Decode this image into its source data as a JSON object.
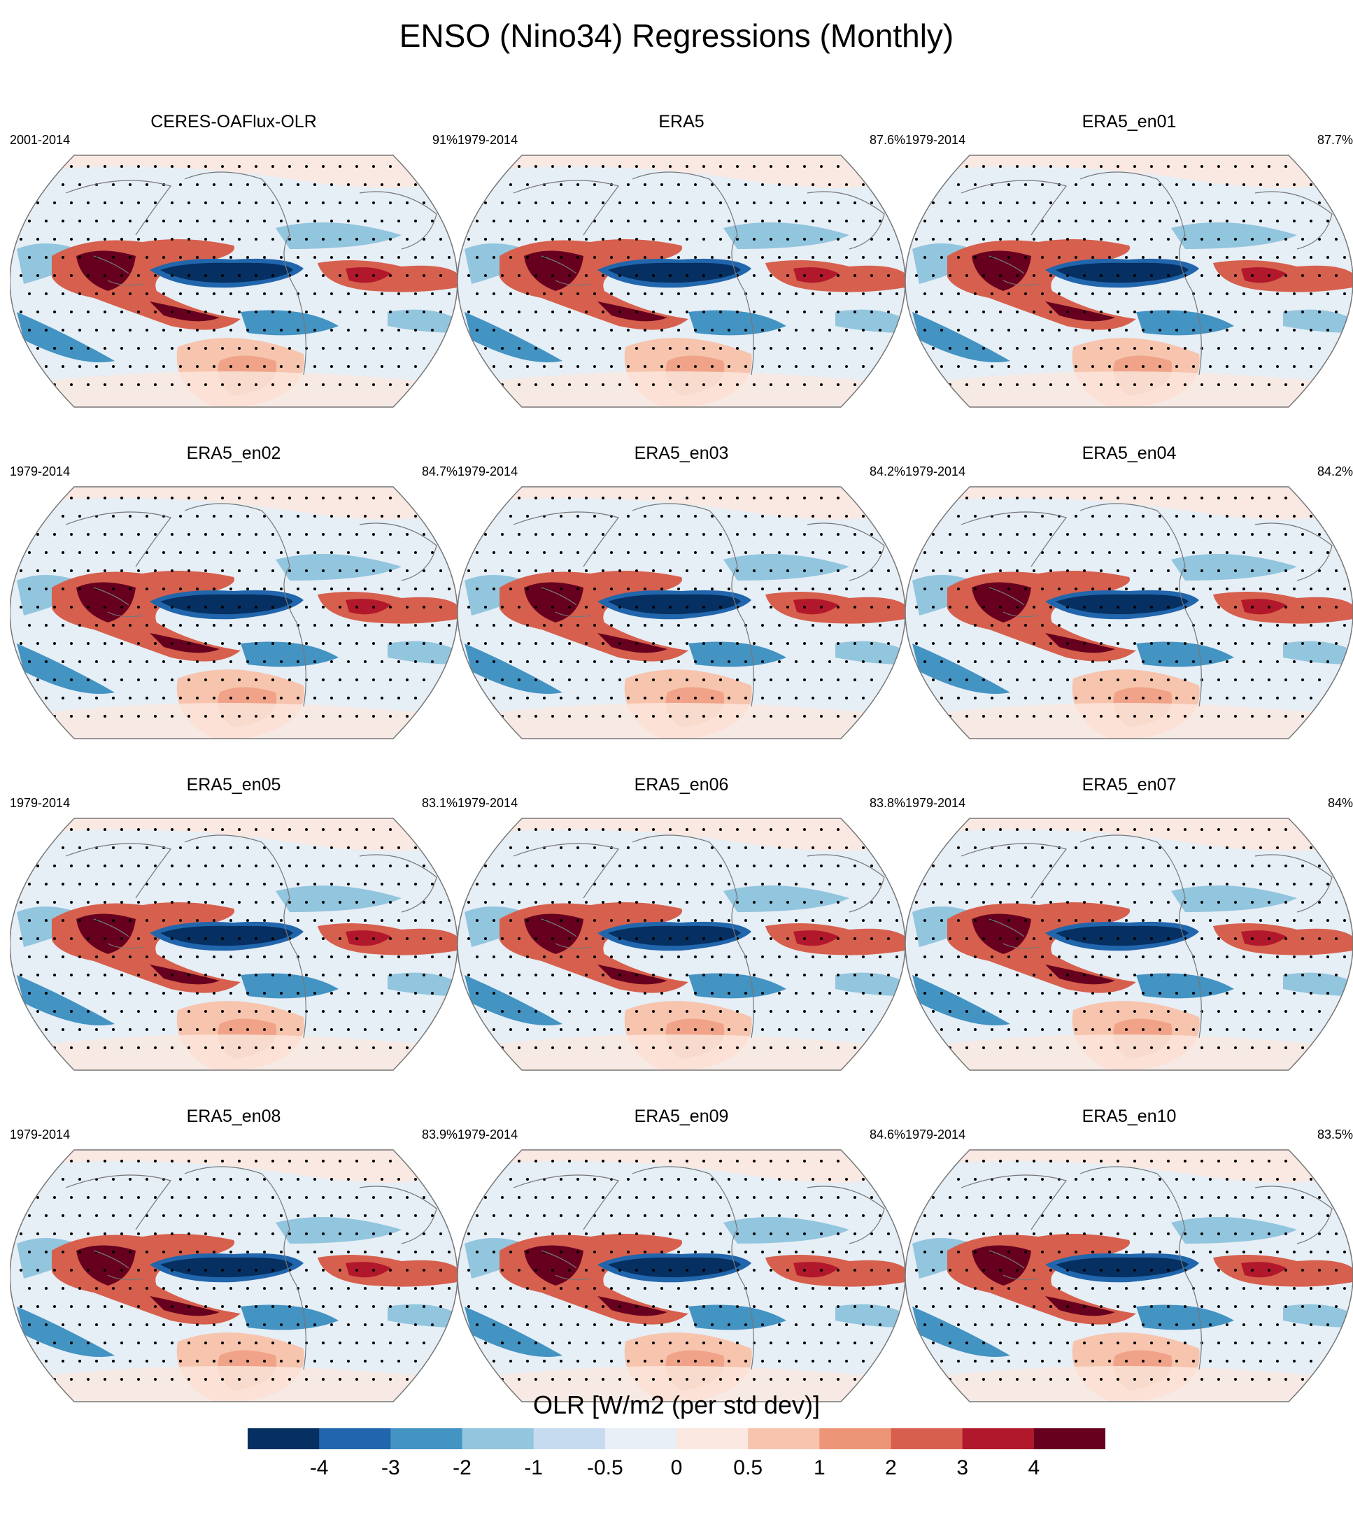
{
  "title": "ENSO (Nino34) Regressions (Monthly)",
  "chart_data": {
    "type": "heatmap",
    "projection": "Robinson (global map)",
    "variable_label": "OLR [W/m2 (per std dev)]",
    "panels": [
      {
        "name": "CERES-OAFlux-OLR",
        "period": "2001-2014",
        "pattern_pct": "91%"
      },
      {
        "name": "ERA5",
        "period": "1979-2014",
        "pattern_pct": "87.6%"
      },
      {
        "name": "ERA5_en01",
        "period": "1979-2014",
        "pattern_pct": "87.7%"
      },
      {
        "name": "ERA5_en02",
        "period": "1979-2014",
        "pattern_pct": "84.7%"
      },
      {
        "name": "ERA5_en03",
        "period": "1979-2014",
        "pattern_pct": "84.2%"
      },
      {
        "name": "ERA5_en04",
        "period": "1979-2014",
        "pattern_pct": "84.2%"
      },
      {
        "name": "ERA5_en05",
        "period": "1979-2014",
        "pattern_pct": "83.1%"
      },
      {
        "name": "ERA5_en06",
        "period": "1979-2014",
        "pattern_pct": "83.8%"
      },
      {
        "name": "ERA5_en07",
        "period": "1979-2014",
        "pattern_pct": "84%"
      },
      {
        "name": "ERA5_en08",
        "period": "1979-2014",
        "pattern_pct": "83.9%"
      },
      {
        "name": "ERA5_en09",
        "period": "1979-2014",
        "pattern_pct": "84.6%"
      },
      {
        "name": "ERA5_en10",
        "period": "1979-2014",
        "pattern_pct": "83.5%"
      }
    ],
    "colorbar": {
      "levels": [
        "-4",
        "-3",
        "-2",
        "-1",
        "-0.5",
        "0",
        "0.5",
        "1",
        "2",
        "3",
        "4"
      ],
      "colors": [
        "#053061",
        "#2166ac",
        "#4393c3",
        "#92c5de",
        "#c6dbef",
        "#e8eff6",
        "#fbe8e0",
        "#f7c4ad",
        "#ed9677",
        "#d6604d",
        "#b2182b",
        "#67001f"
      ]
    },
    "colors": {
      "ocean_neutral": "#e6eef6",
      "continent_line": "#777777",
      "stipple": "#000000"
    }
  }
}
